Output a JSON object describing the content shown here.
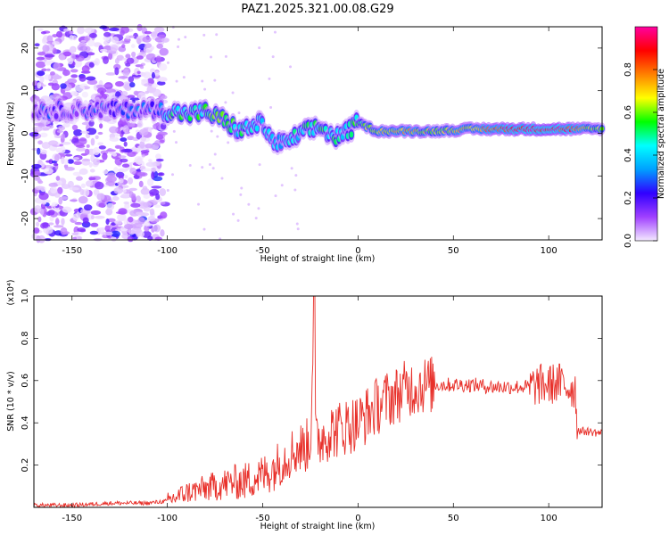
{
  "title": "PAZ1.2025.321.00.08.G29",
  "colors": {
    "snr_line": "#e8302a",
    "frame": "#000000",
    "background": "#ffffff",
    "colormap": [
      "#f4eaff",
      "#a040ff",
      "#3000ff",
      "#00a0ff",
      "#00ffff",
      "#00ff00",
      "#ffff00",
      "#ff8000",
      "#ff0000",
      "#ff00a0"
    ]
  },
  "chart_data": [
    {
      "type": "heatmap",
      "title": "PAZ1.2025.321.00.08.G29",
      "xlabel": "Height of straight line (km)",
      "ylabel": "Frequency (Hz)",
      "xlim": [
        -170,
        128
      ],
      "ylim": [
        -25,
        25
      ],
      "xticks": [
        -150,
        -100,
        -50,
        0,
        50,
        100
      ],
      "yticks": [
        20,
        10,
        0,
        -10,
        -20
      ],
      "colorbar": {
        "label": "Normalized spectral amplitude",
        "range": [
          0,
          1
        ],
        "ticks": [
          0.0,
          0.2,
          0.4,
          0.6,
          0.8
        ]
      },
      "ridge": [
        {
          "x": -140,
          "f": 5.5,
          "amp": 0.2
        },
        {
          "x": -120,
          "f": 5.5,
          "amp": 0.25
        },
        {
          "x": -105,
          "f": 5.5,
          "amp": 0.22
        },
        {
          "x": -98,
          "f": 5.0,
          "amp": 0.55
        },
        {
          "x": -90,
          "f": 4.5,
          "amp": 0.45
        },
        {
          "x": -80,
          "f": 5.0,
          "amp": 0.5
        },
        {
          "x": -72,
          "f": 3.5,
          "amp": 0.55
        },
        {
          "x": -62,
          "f": 0.5,
          "amp": 0.45
        },
        {
          "x": -50,
          "f": 2.5,
          "amp": 0.4
        },
        {
          "x": -45,
          "f": -2.0,
          "amp": 0.35
        },
        {
          "x": -38,
          "f": -2.5,
          "amp": 0.4
        },
        {
          "x": -30,
          "f": 0.0,
          "amp": 0.45
        },
        {
          "x": -20,
          "f": 1.5,
          "amp": 0.5
        },
        {
          "x": -12,
          "f": -1.0,
          "amp": 0.45
        },
        {
          "x": -5,
          "f": 0.5,
          "amp": 0.45
        },
        {
          "x": 0,
          "f": 2.5,
          "amp": 0.55
        },
        {
          "x": 10,
          "f": 0.5,
          "amp": 0.65
        },
        {
          "x": 25,
          "f": 0.5,
          "amp": 0.72
        },
        {
          "x": 40,
          "f": 0.5,
          "amp": 0.62
        },
        {
          "x": 60,
          "f": 1.0,
          "amp": 0.7
        },
        {
          "x": 80,
          "f": 1.0,
          "amp": 0.92
        },
        {
          "x": 95,
          "f": 1.0,
          "amp": 0.95
        },
        {
          "x": 110,
          "f": 1.0,
          "amp": 0.85
        },
        {
          "x": 125,
          "f": 1.0,
          "amp": 0.6
        }
      ]
    },
    {
      "type": "line",
      "xlabel": "Height of straight line (km)",
      "ylabel": "SNR (10 * v/v)",
      "yscale_note": "(x10⁴)",
      "xlim": [
        -170,
        128
      ],
      "ylim": [
        0,
        1.0
      ],
      "xticks": [
        -150,
        -100,
        -50,
        0,
        50,
        100
      ],
      "yticks": [
        0.2,
        0.4,
        0.6,
        0.8,
        1.0
      ],
      "series": [
        {
          "name": "SNR",
          "x": [
            -170,
            -150,
            -130,
            -110,
            -100,
            -95,
            -90,
            -85,
            -80,
            -75,
            -70,
            -65,
            -60,
            -55,
            -50,
            -45,
            -40,
            -35,
            -30,
            -25,
            -23,
            -21,
            -18,
            -15,
            -10,
            -5,
            0,
            5,
            10,
            15,
            20,
            25,
            30,
            35,
            40,
            50,
            60,
            70,
            80,
            90,
            95,
            100,
            105,
            110,
            114,
            115,
            117,
            120,
            128
          ],
          "y": [
            0.01,
            0.01,
            0.02,
            0.02,
            0.03,
            0.05,
            0.07,
            0.08,
            0.09,
            0.1,
            0.11,
            0.12,
            0.12,
            0.14,
            0.15,
            0.18,
            0.22,
            0.26,
            0.28,
            0.3,
            1.0,
            0.32,
            0.34,
            0.36,
            0.37,
            0.39,
            0.4,
            0.44,
            0.48,
            0.51,
            0.53,
            0.56,
            0.57,
            0.58,
            0.58,
            0.58,
            0.58,
            0.57,
            0.57,
            0.57,
            0.58,
            0.58,
            0.59,
            0.57,
            0.56,
            0.37,
            0.36,
            0.36,
            0.35
          ]
        }
      ]
    }
  ]
}
